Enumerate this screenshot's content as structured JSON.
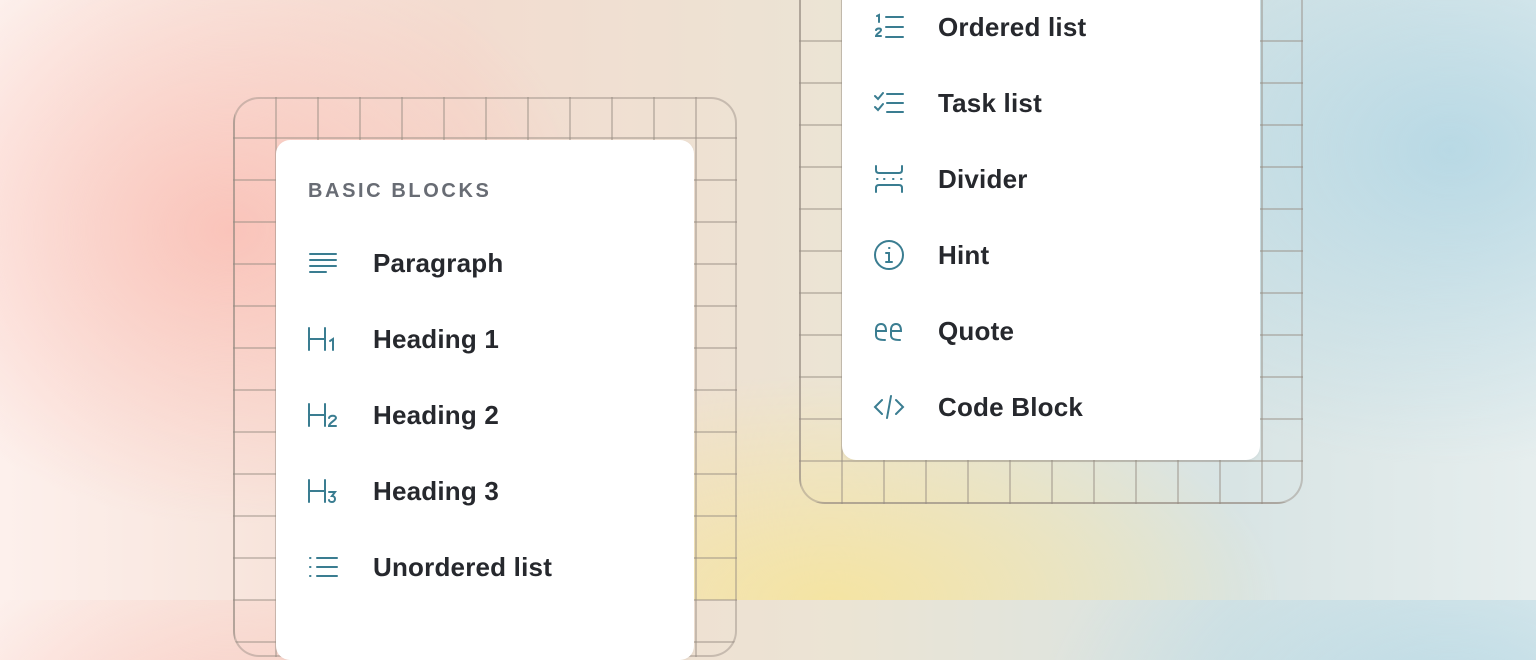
{
  "left_panel": {
    "header": "BASIC BLOCKS",
    "items": [
      {
        "label": "Paragraph",
        "icon": "paragraph-icon"
      },
      {
        "label": "Heading 1",
        "icon": "heading-1-icon"
      },
      {
        "label": "Heading 2",
        "icon": "heading-2-icon"
      },
      {
        "label": "Heading 3",
        "icon": "heading-3-icon"
      },
      {
        "label": "Unordered list",
        "icon": "unordered-list-icon"
      }
    ]
  },
  "right_panel": {
    "items": [
      {
        "label": "Ordered list",
        "icon": "ordered-list-icon"
      },
      {
        "label": "Task list",
        "icon": "task-list-icon"
      },
      {
        "label": "Divider",
        "icon": "divider-icon"
      },
      {
        "label": "Hint",
        "icon": "info-icon"
      },
      {
        "label": "Quote",
        "icon": "quote-icon"
      },
      {
        "label": "Code Block",
        "icon": "code-icon"
      }
    ]
  },
  "colors": {
    "icon": "#3a7d91",
    "text": "#26282d",
    "header": "#686c74"
  }
}
